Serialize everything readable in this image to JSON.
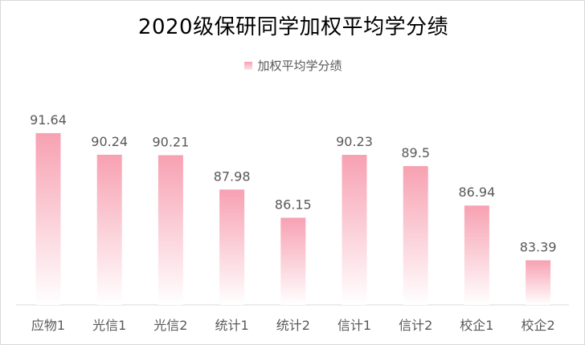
{
  "chart_data": {
    "type": "bar",
    "title": "2020级保研同学加权平均学分绩",
    "categories": [
      "应物1",
      "光信1",
      "光信2",
      "统计1",
      "统计2",
      "信计1",
      "信计2",
      "校企1",
      "校企2"
    ],
    "series": [
      {
        "name": "加权平均学分绩",
        "values": [
          91.64,
          90.24,
          90.21,
          87.98,
          86.15,
          90.23,
          89.5,
          86.94,
          83.39
        ],
        "labels": [
          "91.64",
          "90.24",
          "90.21",
          "87.98",
          "86.15",
          "90.23",
          "89.5",
          "86.94",
          "83.39"
        ]
      }
    ],
    "ylim": [
      80.5,
      92
    ],
    "grid": false,
    "legend_position": "top",
    "colors": {
      "bar_top": "#f7a1b2",
      "bar_bottom": "#ffffff",
      "label": "#595959"
    }
  }
}
